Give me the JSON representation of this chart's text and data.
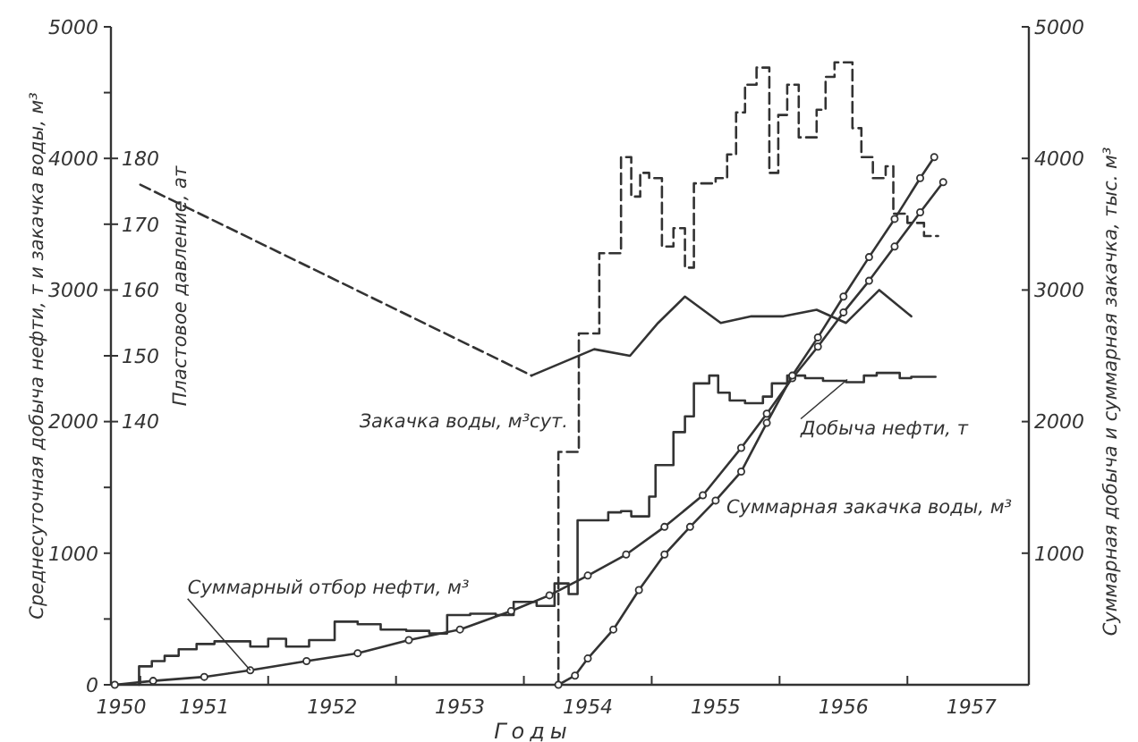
{
  "chart_data": {
    "type": "line",
    "xlabel": "Годы",
    "ylabel": "Среднесуточная добыча нефти, т и закачка воды, м³",
    "y2label": "Суммарная добыча и суммарная закачка, тыс. м³",
    "y3label": "Пластовое давление, ат",
    "xlim": [
      1950.27,
      1957.45
    ],
    "xticks": [
      {
        "value": 1950.35,
        "label": "1950"
      },
      {
        "value": 1950.5,
        "label": null
      },
      1951,
      {
        "value": 1951.5,
        "label": null
      },
      1952,
      {
        "value": 1952.5,
        "label": null
      },
      1953,
      {
        "value": 1953.5,
        "label": null
      },
      1954,
      {
        "value": 1954.5,
        "label": null
      },
      1955,
      {
        "value": 1955.5,
        "label": null
      },
      1956,
      {
        "value": 1956.5,
        "label": null
      },
      1957
    ],
    "ylim": [
      0,
      5000
    ],
    "yticks": [
      0,
      {
        "value": 500,
        "label": null
      },
      1000,
      {
        "value": 1500,
        "label": null
      },
      2000,
      {
        "value": 2500,
        "label": null
      },
      3000,
      {
        "value": 3500,
        "label": null
      },
      4000,
      {
        "value": 4500,
        "label": null
      },
      5000
    ],
    "y2lim": [
      0,
      5000
    ],
    "y2ticks": [
      1000,
      2000,
      3000,
      4000,
      5000
    ],
    "y3lim": [
      100,
      200
    ],
    "y3ticks": [
      140,
      150,
      160,
      170,
      180
    ],
    "series": [
      {
        "type": "step",
        "color": "#333333",
        "x": [
          1950.49,
          1950.49,
          1950.59,
          1950.69,
          1950.8,
          1950.94,
          1951.08,
          1951.36,
          1951.5,
          1951.64,
          1951.82,
          1952.02,
          1952.2,
          1952.38,
          1952.58,
          1952.76,
          1952.9,
          1953.08,
          1953.28,
          1953.42,
          1953.6,
          1953.74,
          1953.85,
          1953.92,
          1954.16,
          1954.26,
          1954.34,
          1954.48,
          1954.53,
          1954.67,
          1954.76,
          1954.83,
          1954.95,
          1955.02,
          1955.11,
          1955.23,
          1955.37,
          1955.44,
          1955.56,
          1955.7,
          1955.84,
          1956.02,
          1956.16,
          1956.26,
          1956.44,
          1956.53,
          1956.72
        ],
        "values": [
          0,
          140,
          180,
          220,
          270,
          310,
          330,
          290,
          350,
          290,
          340,
          480,
          460,
          420,
          410,
          390,
          530,
          540,
          530,
          630,
          600,
          770,
          690,
          1250,
          1310,
          1320,
          1280,
          1430,
          1670,
          1920,
          2040,
          2290,
          2350,
          2220,
          2160,
          2140,
          2190,
          2290,
          2350,
          2330,
          2310,
          2300,
          2350,
          2370,
          2330,
          2340,
          2340
        ]
      },
      {
        "type": "step",
        "color": "#333333",
        "line_style": "dashed",
        "x": [
          1953.77,
          1953.77,
          1953.93,
          1954.09,
          1954.26,
          1954.34,
          1954.41,
          1954.48,
          1954.58,
          1954.67,
          1954.76,
          1954.83,
          1955.0,
          1955.09,
          1955.16,
          1955.23,
          1955.32,
          1955.42,
          1955.49,
          1955.56,
          1955.65,
          1955.79,
          1955.86,
          1955.93,
          1956.07,
          1956.14,
          1956.23,
          1956.33,
          1956.39,
          1956.5,
          1956.63,
          1956.74
        ],
        "values": [
          0,
          1770,
          2670,
          3280,
          4010,
          3710,
          3890,
          3850,
          3330,
          3470,
          3170,
          3810,
          3850,
          4030,
          4350,
          4560,
          4690,
          3890,
          4330,
          4560,
          4160,
          4370,
          4620,
          4730,
          4230,
          4010,
          3850,
          3940,
          3580,
          3510,
          3410,
          3410
        ]
      },
      {
        "axis": "y3",
        "color": "#333333",
        "line_style": "dashed",
        "x": [
          1950.5,
          1953.56
        ],
        "values": [
          176,
          147
        ]
      },
      {
        "axis": "y3",
        "color": "#333333",
        "x": [
          1953.56,
          1954.05,
          1954.33,
          1954.55,
          1954.76,
          1955.04,
          1955.28,
          1955.53,
          1955.79,
          1956.02,
          1956.28,
          1956.53
        ],
        "values": [
          147,
          151,
          150,
          155,
          159,
          155,
          156,
          156,
          157,
          155,
          160,
          156
        ]
      },
      {
        "axis": "y2",
        "color": "#333333",
        "marker": "circle",
        "x": [
          1950.3,
          1950.6,
          1951.0,
          1951.36,
          1951.8,
          1952.2,
          1952.6,
          1953.0,
          1953.4,
          1953.7,
          1954.0,
          1954.3,
          1954.6,
          1954.9,
          1955.2,
          1955.4,
          1955.6,
          1955.8,
          1956.0,
          1956.2,
          1956.4,
          1956.6,
          1956.78
        ],
        "values": [
          0,
          30,
          60,
          110,
          180,
          240,
          340,
          420,
          560,
          680,
          830,
          990,
          1200,
          1440,
          1800,
          2060,
          2330,
          2570,
          2830,
          3070,
          3330,
          3590,
          3820
        ]
      },
      {
        "axis": "y2",
        "color": "#333333",
        "marker": "circle",
        "x": [
          1953.77,
          1953.9,
          1954.0,
          1954.2,
          1954.4,
          1954.6,
          1954.8,
          1955.0,
          1955.2,
          1955.4,
          1955.6,
          1955.8,
          1956.0,
          1956.2,
          1956.4,
          1956.6,
          1956.71
        ],
        "values": [
          0,
          70,
          200,
          420,
          720,
          990,
          1200,
          1400,
          1620,
          1990,
          2350,
          2640,
          2950,
          3250,
          3540,
          3850,
          4010
        ]
      }
    ],
    "annotations": [
      {
        "text": "Суммарный отбор нефти, м³",
        "x": 1951.36,
        "y": 110
      },
      {
        "text": "Закачка воды, м³сут.",
        "x": 1953.93,
        "y": 2000
      },
      {
        "text": "Добыча нефти, т",
        "x": 1956.03,
        "y": 2320
      },
      {
        "text": "Суммарная закачка воды, м³",
        "x": 1955.0,
        "y": 1400
      }
    ]
  }
}
